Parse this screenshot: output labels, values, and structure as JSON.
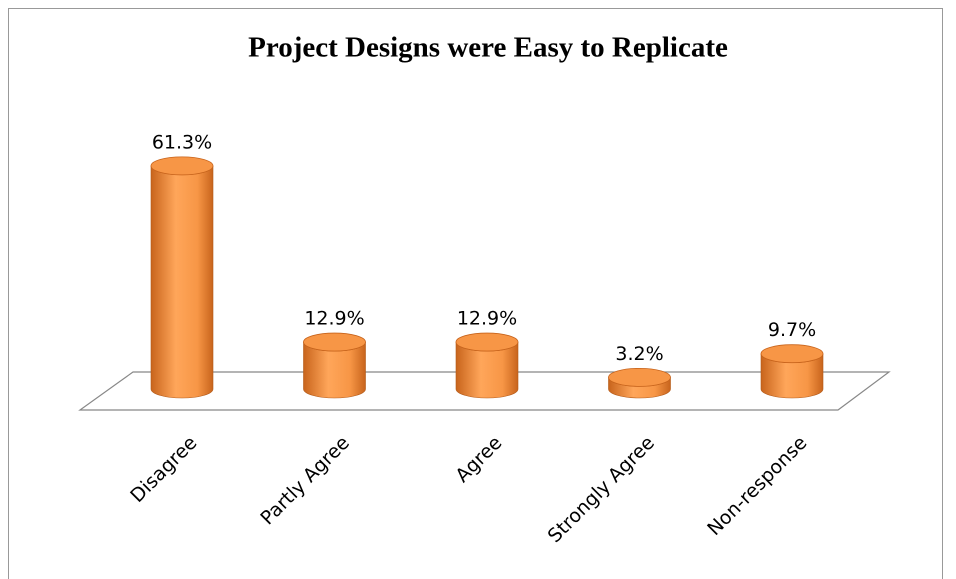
{
  "chart_data": {
    "type": "bar3d",
    "title": "Project Designs were Easy to Replicate",
    "categories": [
      "Disagree",
      "Partly Agree",
      "Agree",
      "Strongly Agree",
      "Non-response"
    ],
    "values": [
      61.3,
      12.9,
      12.9,
      3.2,
      9.7
    ],
    "value_labels": [
      "61.3%",
      "12.9%",
      "12.9%",
      "3.2%",
      "9.7%"
    ],
    "color": "#f79646"
  }
}
